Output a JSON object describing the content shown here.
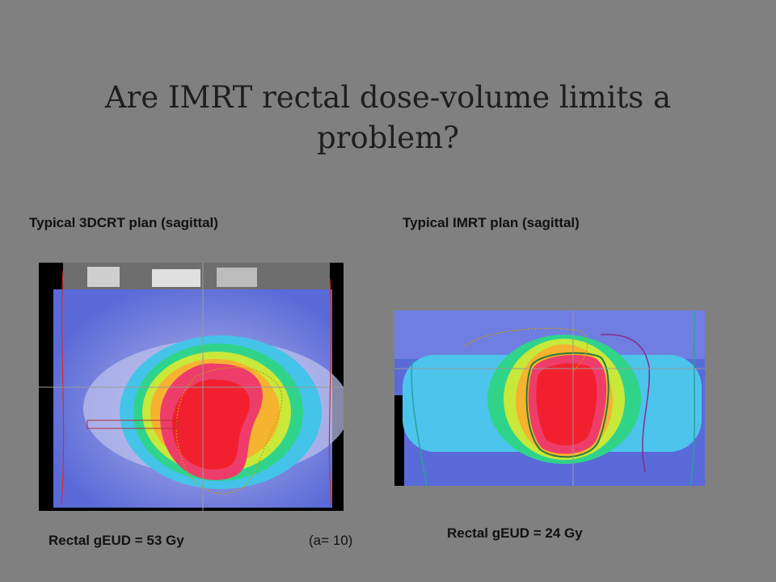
{
  "slide": {
    "title": "Are IMRT rectal dose-volume limits a problem?",
    "left_panel": {
      "caption": "Typical 3DCRT plan (sagittal)",
      "result": "Rectal gEUD = 53 Gy",
      "note": "(a= 10)"
    },
    "right_panel": {
      "caption": "Typical IMRT plan (sagittal)",
      "result": "Rectal gEUD = 24 Gy"
    }
  }
}
